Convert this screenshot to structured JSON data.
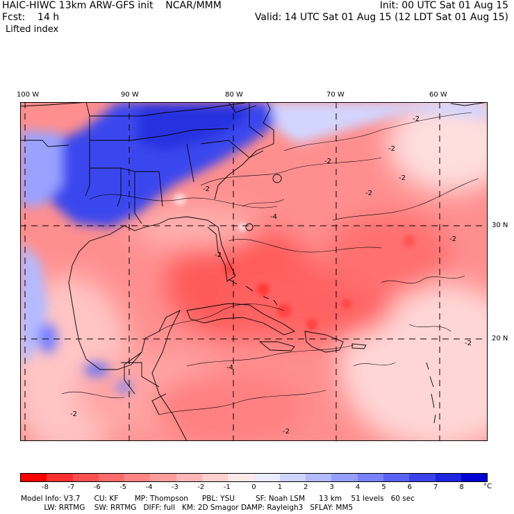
{
  "header": {
    "model_line": "HAIC-HIWC 13km ARW-GFS init    NCAR/MMM",
    "init": "Init: 00 UTC Sat 01 Aug 15",
    "fcst": "Fcst:    14 h",
    "valid": "Valid: 14 UTC Sat 01 Aug 15 (12 LDT Sat 01 Aug 15)",
    "field": "Lifted index"
  },
  "map": {
    "lon_labels": [
      "100 W",
      "90 W",
      "80 W",
      "70 W",
      "60 W"
    ],
    "lat_labels": [
      "30 N",
      "20 N"
    ],
    "contour_labels": [
      "-2",
      "-2",
      "-2",
      "-2",
      "-2",
      "-2",
      "-2",
      "-2",
      "-2",
      "-4",
      "-4",
      "-2",
      "-2"
    ]
  },
  "colorbar": {
    "ticks": [
      "-8",
      "-7",
      "-6",
      "-5",
      "-4",
      "-3",
      "-2",
      "-1",
      "0",
      "1",
      "2",
      "3",
      "4",
      "5",
      "6",
      "7",
      "8"
    ],
    "unit": "°C",
    "colors": [
      "#ff0000",
      "#ff3030",
      "#ff5050",
      "#ff6b6b",
      "#ff8585",
      "#ff9d9d",
      "#ffb5b5",
      "#ffcfcf",
      "#ffe8e8",
      "#e9ebff",
      "#cfd4ff",
      "#b3baff",
      "#969eff",
      "#7880ff",
      "#5a62f6",
      "#3c43ec",
      "#1e24e0",
      "#0000d6"
    ]
  },
  "footer": {
    "line1": "Model Info: V3.7      CU: KF       MP: Thompson      PBL: YSU         SF: Noah LSM      13 km    51 levels   60 sec",
    "line2": "          LW: RRTMG    SW: RRTMG   DIFF: full   KM: 2D Smagor DAMP: Rayleigh3   SFLAY: MM5"
  }
}
